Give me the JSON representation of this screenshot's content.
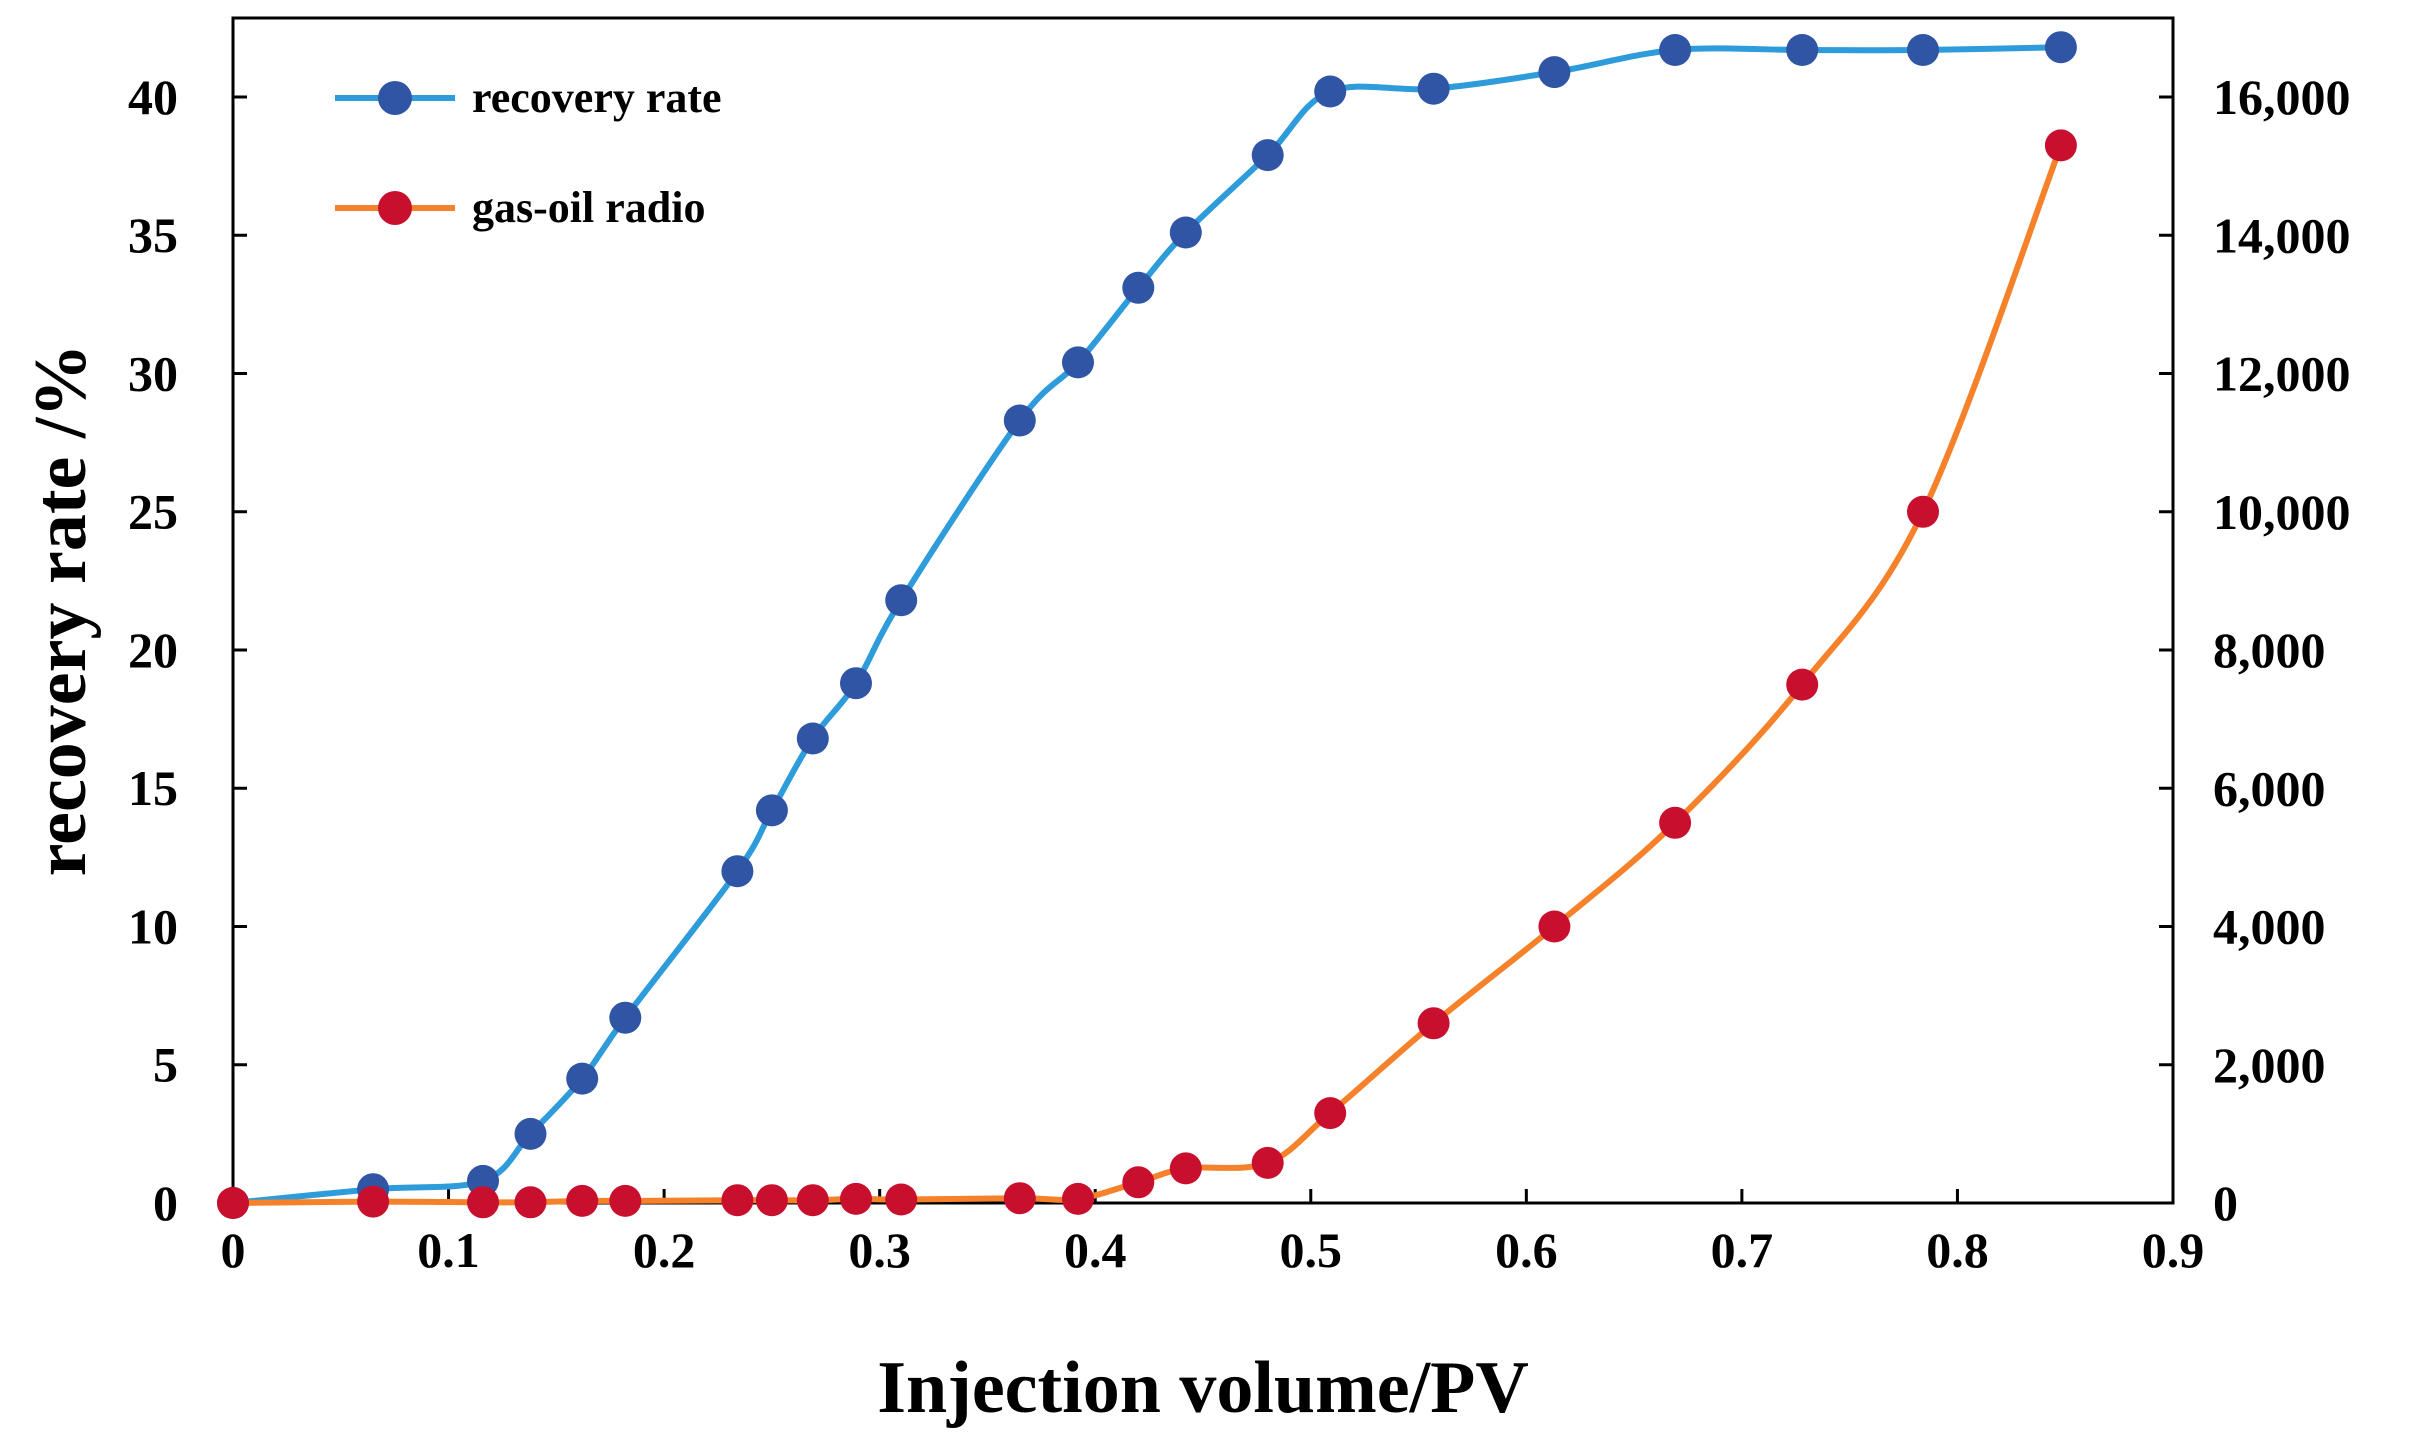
{
  "chart_data": {
    "type": "line",
    "title": "",
    "xlabel": "Injection volume/PV",
    "ylabel": "recovery rate /%",
    "y2label": "",
    "xlim": [
      0,
      0.9
    ],
    "ylim": [
      0,
      42.857
    ],
    "y2lim": [
      0,
      17142.86
    ],
    "xticks": [
      "0",
      "0.1",
      "0.2",
      "0.3",
      "0.4",
      "0.5",
      "0.6",
      "0.7",
      "0.8",
      "0.9"
    ],
    "yticks": [
      "0",
      "5",
      "10",
      "15",
      "20",
      "25",
      "30",
      "35",
      "40"
    ],
    "y2ticks": [
      "0",
      "2,000",
      "4,000",
      "6,000",
      "8,000",
      "10,000",
      "12,000",
      "14,000",
      "16,000"
    ],
    "grid": false,
    "legend_position": "top-left",
    "series": [
      {
        "name": "recovery rate",
        "axis": "left",
        "color": "#2e9bdb",
        "marker_color": "#2f55a4",
        "x": [
          0,
          0.065,
          0.116,
          0.138,
          0.162,
          0.182,
          0.234,
          0.25,
          0.269,
          0.289,
          0.31,
          0.365,
          0.392,
          0.42,
          0.442,
          0.48,
          0.509,
          0.557,
          0.613,
          0.669,
          0.728,
          0.784,
          0.848
        ],
        "values": [
          0,
          0.5,
          0.8,
          2.5,
          4.5,
          6.7,
          12.0,
          14.2,
          16.8,
          18.8,
          21.8,
          28.3,
          30.4,
          33.1,
          35.1,
          37.9,
          40.2,
          40.3,
          40.9,
          41.7,
          41.7,
          41.7,
          41.8
        ]
      },
      {
        "name": "gas-oil radio",
        "axis": "right",
        "color": "#f5822a",
        "marker_color": "#c8102e",
        "x": [
          0,
          0.065,
          0.116,
          0.138,
          0.162,
          0.182,
          0.234,
          0.25,
          0.269,
          0.289,
          0.31,
          0.365,
          0.392,
          0.42,
          0.442,
          0.48,
          0.509,
          0.557,
          0.613,
          0.669,
          0.728,
          0.784,
          0.848
        ],
        "values": [
          0,
          20,
          10,
          10,
          30,
          30,
          40,
          40,
          40,
          60,
          50,
          70,
          60,
          300,
          500,
          580,
          1300,
          2600,
          4000,
          5500,
          7500,
          10000,
          15300
        ]
      }
    ]
  }
}
